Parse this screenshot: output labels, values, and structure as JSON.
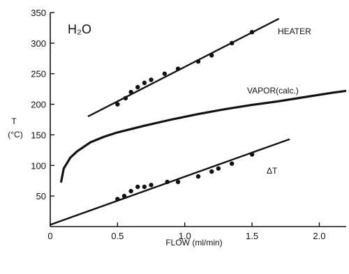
{
  "chart_data": {
    "type": "scatter",
    "title": "H₂O",
    "xlabel": "FLOW (ml/min)",
    "ylabel_lines": [
      "T",
      "(°C)"
    ],
    "xlim": [
      0,
      2.2
    ],
    "ylim": [
      0,
      350
    ],
    "x_ticks": [
      0,
      0.5,
      1.0,
      1.5,
      2.0
    ],
    "x_tick_labels": [
      "0",
      "0.5",
      "1.0",
      "1.5",
      "2.0"
    ],
    "y_ticks": [
      50,
      100,
      150,
      200,
      250,
      300,
      350
    ],
    "y_tick_labels": [
      "50",
      "100",
      "150",
      "200",
      "250",
      "300",
      "350"
    ],
    "grid": false,
    "series": [
      {
        "name": "HEATER",
        "kind": "points+fit",
        "points": [
          {
            "x": 0.5,
            "y": 200
          },
          {
            "x": 0.56,
            "y": 210
          },
          {
            "x": 0.6,
            "y": 220
          },
          {
            "x": 0.65,
            "y": 228
          },
          {
            "x": 0.7,
            "y": 235
          },
          {
            "x": 0.75,
            "y": 240
          },
          {
            "x": 0.85,
            "y": 250
          },
          {
            "x": 0.95,
            "y": 258
          },
          {
            "x": 1.1,
            "y": 270
          },
          {
            "x": 1.2,
            "y": 280
          },
          {
            "x": 1.35,
            "y": 300
          },
          {
            "x": 1.5,
            "y": 318
          }
        ],
        "fit": [
          {
            "x": 0.28,
            "y": 180
          },
          {
            "x": 1.7,
            "y": 340
          }
        ]
      },
      {
        "name": "VAPOR(calc.)",
        "kind": "curve",
        "curve": [
          {
            "x": 0.08,
            "y": 72
          },
          {
            "x": 0.1,
            "y": 95
          },
          {
            "x": 0.15,
            "y": 113
          },
          {
            "x": 0.2,
            "y": 123
          },
          {
            "x": 0.3,
            "y": 138
          },
          {
            "x": 0.4,
            "y": 147
          },
          {
            "x": 0.5,
            "y": 154
          },
          {
            "x": 0.7,
            "y": 165
          },
          {
            "x": 0.9,
            "y": 175
          },
          {
            "x": 1.1,
            "y": 184
          },
          {
            "x": 1.3,
            "y": 192
          },
          {
            "x": 1.5,
            "y": 199
          },
          {
            "x": 1.7,
            "y": 205
          },
          {
            "x": 1.9,
            "y": 212
          },
          {
            "x": 2.1,
            "y": 219
          },
          {
            "x": 2.2,
            "y": 222
          }
        ]
      },
      {
        "name": "ΔT",
        "kind": "points+fit",
        "points": [
          {
            "x": 0.5,
            "y": 45
          },
          {
            "x": 0.55,
            "y": 50
          },
          {
            "x": 0.6,
            "y": 58
          },
          {
            "x": 0.65,
            "y": 65
          },
          {
            "x": 0.7,
            "y": 65
          },
          {
            "x": 0.75,
            "y": 68
          },
          {
            "x": 0.87,
            "y": 73
          },
          {
            "x": 0.95,
            "y": 73
          },
          {
            "x": 1.1,
            "y": 82
          },
          {
            "x": 1.2,
            "y": 90
          },
          {
            "x": 1.25,
            "y": 95
          },
          {
            "x": 1.35,
            "y": 103
          },
          {
            "x": 1.5,
            "y": 118
          }
        ],
        "fit": [
          {
            "x": 0.0,
            "y": 3
          },
          {
            "x": 1.78,
            "y": 143
          }
        ]
      }
    ]
  }
}
